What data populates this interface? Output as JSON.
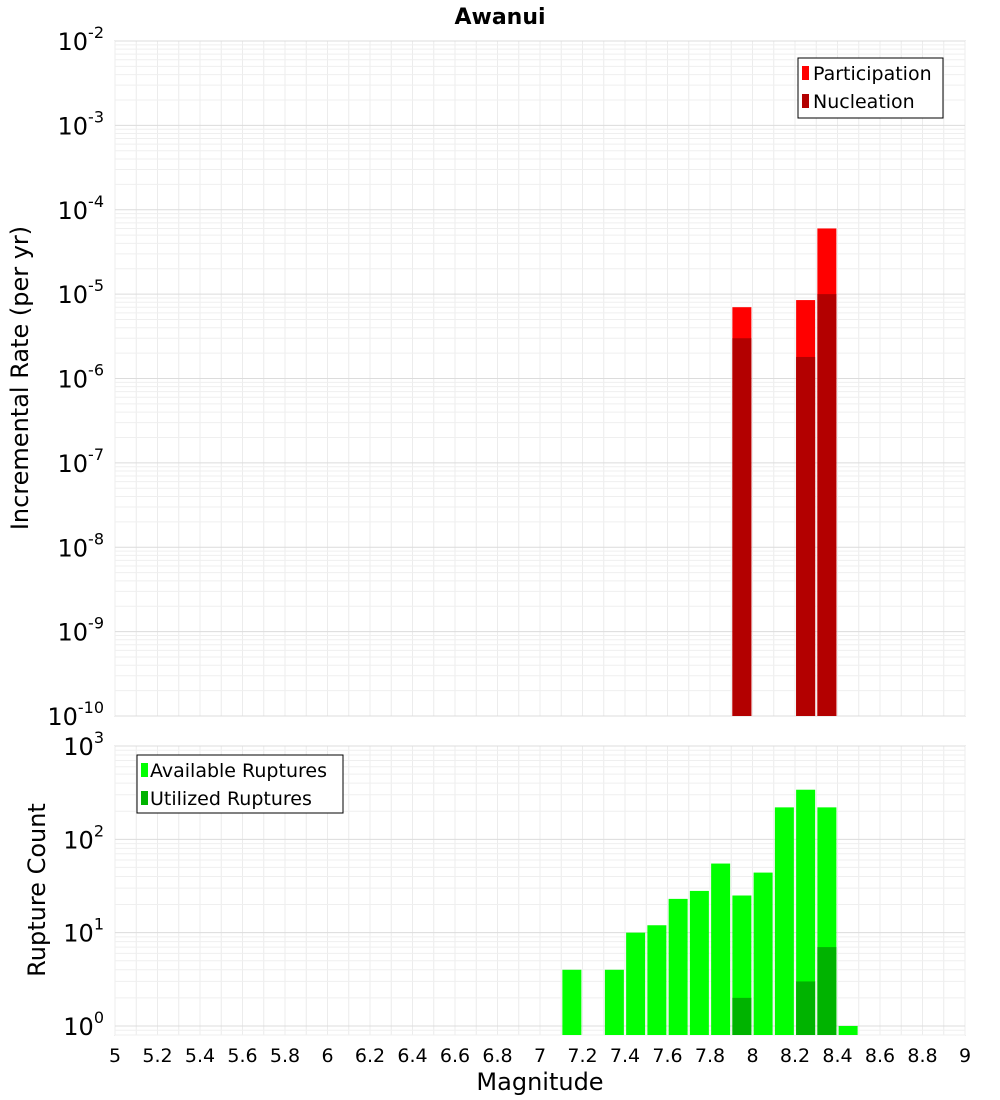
{
  "chart_data": [
    {
      "type": "bar",
      "title": "Awanui",
      "xlabel": "",
      "ylabel": "Incremental Rate (per yr)",
      "yscale": "log",
      "xlim": [
        5,
        9
      ],
      "ylim": [
        1e-10,
        0.01
      ],
      "y_tick_labels": [
        {
          "base": "10",
          "exp": "-10"
        },
        {
          "base": "10",
          "exp": "-9"
        },
        {
          "base": "10",
          "exp": "-8"
        },
        {
          "base": "10",
          "exp": "-7"
        },
        {
          "base": "10",
          "exp": "-6"
        },
        {
          "base": "10",
          "exp": "-5"
        },
        {
          "base": "10",
          "exp": "-4"
        },
        {
          "base": "10",
          "exp": "-3"
        },
        {
          "base": "10",
          "exp": "-2"
        }
      ],
      "grid": true,
      "legend": "top-right",
      "series": [
        {
          "name": "Participation",
          "color": "#ff0000",
          "x": [
            7.95,
            8.25,
            8.35
          ],
          "values": [
            7e-06,
            8.5e-06,
            6e-05
          ]
        },
        {
          "name": "Nucleation",
          "color": "#b30000",
          "x": [
            7.95,
            8.25,
            8.35
          ],
          "values": [
            3e-06,
            1.8e-06,
            1e-05
          ]
        }
      ]
    },
    {
      "type": "bar",
      "xlabel": "Magnitude",
      "ylabel": "Rupture Count",
      "yscale": "log",
      "xlim": [
        5,
        9
      ],
      "ylim": [
        0.8,
        1000
      ],
      "y_tick_labels": [
        {
          "base": "10",
          "exp": "0"
        },
        {
          "base": "10",
          "exp": "1"
        },
        {
          "base": "10",
          "exp": "2"
        },
        {
          "base": "10",
          "exp": "3"
        }
      ],
      "x_tick_labels": [
        "5",
        "5.2",
        "5.4",
        "5.6",
        "5.8",
        "6",
        "6.2",
        "6.4",
        "6.6",
        "6.8",
        "7",
        "7.2",
        "7.4",
        "7.6",
        "7.8",
        "8",
        "8.2",
        "8.4",
        "8.6",
        "8.8",
        "9"
      ],
      "grid": true,
      "legend": "top-left",
      "series": [
        {
          "name": "Available Ruptures",
          "color": "#00ff00",
          "x": [
            7.15,
            7.35,
            7.45,
            7.55,
            7.65,
            7.75,
            7.85,
            7.95,
            8.05,
            8.15,
            8.25,
            8.35,
            8.45
          ],
          "values": [
            4,
            4,
            10,
            12,
            23,
            28,
            55,
            25,
            44,
            220,
            340,
            220,
            1
          ]
        },
        {
          "name": "Utilized Ruptures",
          "color": "#00b300",
          "x": [
            7.95,
            8.25,
            8.35
          ],
          "values": [
            2,
            3,
            7
          ]
        }
      ]
    }
  ]
}
